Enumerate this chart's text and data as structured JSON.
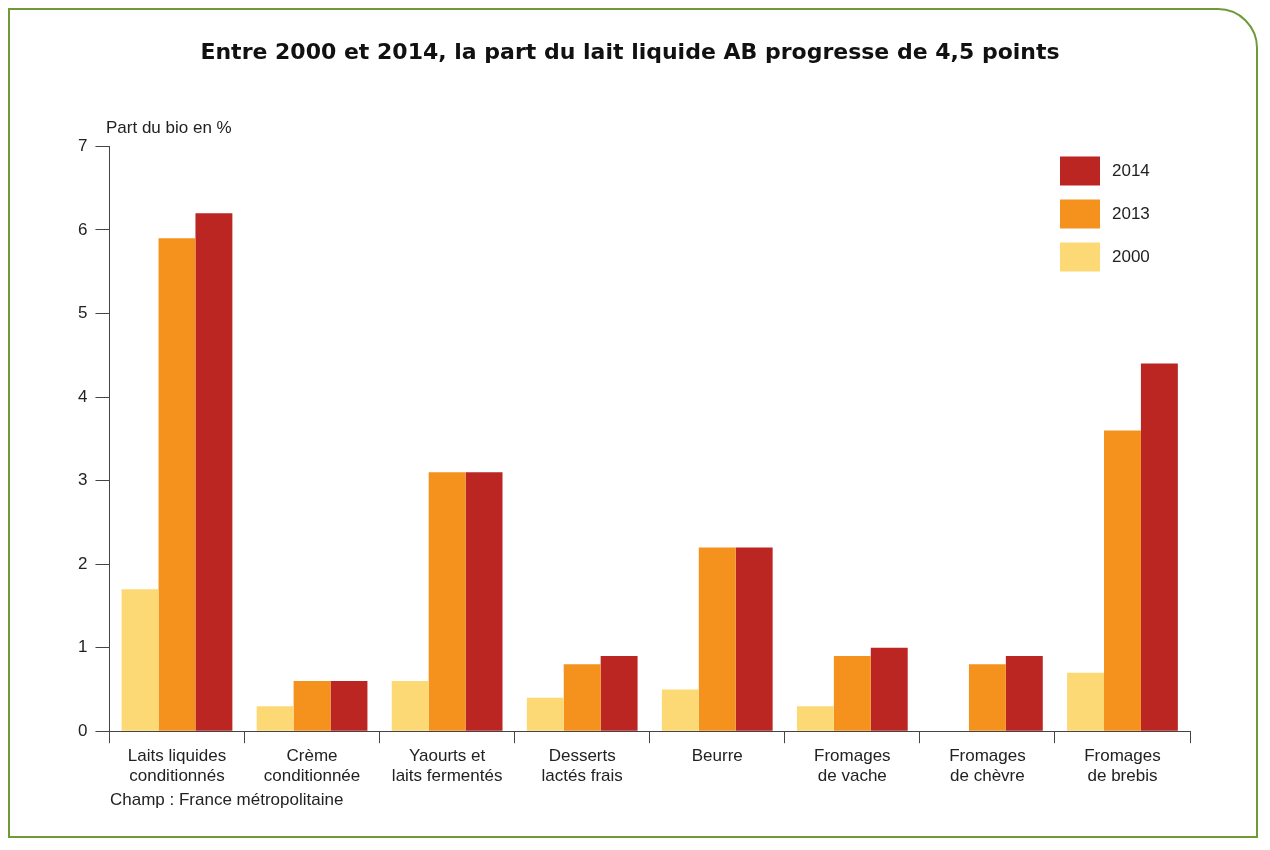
{
  "chart_data": {
    "type": "bar",
    "title": "Entre 2000 et 2014, la part du lait liquide AB progresse de 4,5 points",
    "ylabel": "Part du bio en %",
    "categories": [
      "Laits liquides conditionnés",
      "Crème conditionnée",
      "Yaourts et laits fermentés",
      "Desserts lactés frais",
      "Beurre",
      "Fromages de vache",
      "Fromages de chèvre",
      "Fromages de brebis"
    ],
    "series": [
      {
        "name": "2000",
        "color": "#fdd975",
        "values": [
          1.7,
          0.3,
          0.6,
          0.4,
          0.5,
          0.3,
          0,
          0.7
        ]
      },
      {
        "name": "2013",
        "color": "#f5921e",
        "values": [
          5.9,
          0.6,
          3.1,
          0.8,
          2.2,
          0.9,
          0.8,
          3.6
        ]
      },
      {
        "name": "2014",
        "color": "#bb2622",
        "values": [
          6.2,
          0.6,
          3.1,
          0.9,
          2.2,
          1.0,
          0.9,
          4.4
        ]
      }
    ],
    "ylim": [
      0,
      7
    ],
    "yticks": [
      0,
      1,
      2,
      3,
      4,
      5,
      6,
      7
    ],
    "grid": false,
    "legend": "top right",
    "annotations": [
      "Champ : France métropolitaine"
    ]
  }
}
